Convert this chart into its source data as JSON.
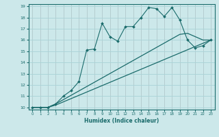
{
  "xlabel": "Humidex (Indice chaleur)",
  "bg_color": "#cce8ea",
  "line_color": "#1a6b6b",
  "grid_color": "#aad4d8",
  "xlim": [
    -0.5,
    23.5
  ],
  "ylim": [
    9.8,
    19.2
  ],
  "yticks": [
    10,
    11,
    12,
    13,
    14,
    15,
    16,
    17,
    18,
    19
  ],
  "xticks": [
    0,
    1,
    2,
    3,
    4,
    5,
    6,
    7,
    8,
    9,
    10,
    11,
    12,
    13,
    14,
    15,
    16,
    17,
    18,
    19,
    20,
    21,
    22,
    23
  ],
  "line_wiggly": {
    "x": [
      0,
      1,
      2,
      3,
      4,
      5,
      6,
      7,
      8,
      9,
      10,
      11,
      12,
      13,
      14,
      15,
      16,
      17,
      18,
      19,
      20,
      21,
      22,
      23
    ],
    "y": [
      10,
      10,
      10,
      10.3,
      11,
      11.5,
      12.3,
      15.1,
      15.2,
      17.5,
      16.3,
      15.9,
      17.2,
      17.2,
      18.0,
      18.9,
      18.8,
      18.1,
      18.9,
      17.8,
      16.0,
      15.3,
      15.5,
      16.0
    ]
  },
  "line_low": {
    "x": [
      0,
      1,
      2,
      3,
      23
    ],
    "y": [
      10,
      10,
      10,
      10.2,
      16.0
    ]
  },
  "line_high": {
    "x": [
      0,
      1,
      2,
      3,
      19,
      20,
      22,
      23
    ],
    "y": [
      10,
      10,
      10,
      10.3,
      16.5,
      16.6,
      16.0,
      16.0
    ]
  }
}
